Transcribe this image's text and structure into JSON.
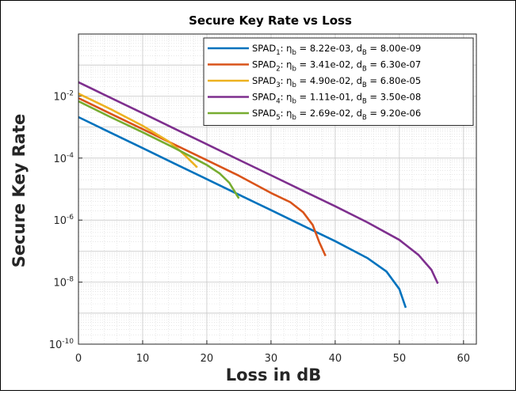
{
  "chart_data": {
    "type": "line",
    "title": "Secure Key Rate vs Loss",
    "xlabel": "Loss in dB",
    "ylabel": "Secure Key Rate",
    "xlim": [
      0,
      62
    ],
    "ylim_log10": [
      -10,
      0
    ],
    "yscale": "log",
    "grid": true,
    "minor_grid": true,
    "legend_position": "top-right",
    "x_ticks": [
      0,
      10,
      20,
      30,
      40,
      50,
      60
    ],
    "x_tick_labels": [
      "0",
      "10",
      "20",
      "30",
      "40",
      "50",
      "60"
    ],
    "y_ticks_log10": [
      -10,
      -8,
      -6,
      -4,
      -2
    ],
    "y_tick_labels": [
      {
        "base": "10",
        "exp": "-10"
      },
      {
        "base": "10",
        "exp": "-8"
      },
      {
        "base": "10",
        "exp": "-6"
      },
      {
        "base": "10",
        "exp": "-4"
      },
      {
        "base": "10",
        "exp": "-2"
      }
    ],
    "series": [
      {
        "name": "SPAD 1",
        "label_main": "SPAD",
        "label_sub": "1",
        "label_params": ": η_b = 8.22e-03, d_B = 8.00e-09",
        "color": "#0072BD",
        "x": [
          0,
          5,
          10,
          15,
          20,
          25,
          30,
          35,
          40,
          45,
          48,
          50,
          51
        ],
        "y": [
          0.0021,
          0.00066,
          0.00021,
          6.6e-05,
          2.1e-05,
          6.6e-06,
          2.1e-06,
          6.6e-07,
          2.1e-07,
          6e-08,
          2.2e-08,
          6e-09,
          1.5e-09
        ]
      },
      {
        "name": "SPAD 2",
        "label_main": "SPAD",
        "label_sub": "2",
        "label_params": ": η_b = 3.41e-02, d_B = 6.30e-07",
        "color": "#D95319",
        "x": [
          0,
          5,
          10,
          15,
          20,
          25,
          30,
          33,
          35,
          36.5,
          37.5,
          38.5
        ],
        "y": [
          0.0086,
          0.0027,
          0.00086,
          0.00027,
          8.6e-05,
          2.7e-05,
          7.5e-06,
          3.8e-06,
          1.8e-06,
          7e-07,
          2e-07,
          7e-08
        ]
      },
      {
        "name": "SPAD 3",
        "label_main": "SPAD",
        "label_sub": "3",
        "label_params": ": η_b = 4.90e-02, d_B = 6.80e-05",
        "color": "#EDB120",
        "x": [
          0,
          5,
          10,
          14,
          16,
          17.5,
          18.5
        ],
        "y": [
          0.012,
          0.0038,
          0.0011,
          0.00035,
          0.00016,
          8e-05,
          5e-05
        ]
      },
      {
        "name": "SPAD 4",
        "label_main": "SPAD",
        "label_sub": "4",
        "label_params": ": η_b = 1.11e-01, d_B = 3.50e-08",
        "color": "#7E2F8E",
        "x": [
          0,
          5,
          10,
          15,
          20,
          25,
          30,
          35,
          40,
          45,
          50,
          53,
          55,
          56
        ],
        "y": [
          0.028,
          0.0088,
          0.0028,
          0.00088,
          0.00028,
          8.8e-05,
          2.8e-05,
          8.8e-06,
          2.8e-06,
          8.5e-07,
          2.3e-07,
          7.5e-08,
          2.5e-08,
          9e-09
        ]
      },
      {
        "name": "SPAD 5",
        "label_main": "SPAD",
        "label_sub": "5",
        "label_params": ": η_b = 2.69e-02, d_B = 9.20e-06",
        "color": "#77AC30",
        "x": [
          0,
          5,
          10,
          15,
          20,
          22,
          23.5,
          25
        ],
        "y": [
          0.0068,
          0.0021,
          0.00068,
          0.00021,
          6e-05,
          3.2e-05,
          1.6e-05,
          5e-06
        ]
      }
    ]
  }
}
